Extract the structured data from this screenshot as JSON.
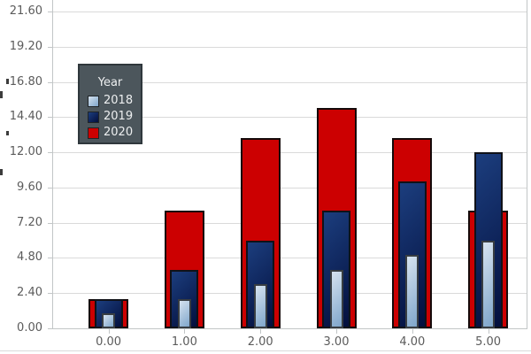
{
  "chart_data": {
    "type": "bar",
    "style": "overlapped bars: 2020 widest behind, 2019 middle, 2018 narrowest in front",
    "categories": [
      "0.00",
      "1.00",
      "2.00",
      "3.00",
      "4.00",
      "5.00"
    ],
    "series": [
      {
        "name": "2018",
        "values": [
          1,
          2,
          3,
          4,
          5,
          6
        ],
        "fill_top": "#D6E2EF",
        "fill_bottom": "#7FA6CB",
        "border": "#383d42"
      },
      {
        "name": "2019",
        "values": [
          2,
          4,
          6,
          8,
          10,
          12
        ],
        "fill_top": "#1C3E7E",
        "fill_bottom": "#030F3D",
        "border": "#101218"
      },
      {
        "name": "2020",
        "values": [
          2,
          8,
          13,
          15,
          13,
          8
        ],
        "fill_top": "#CC0001",
        "fill_bottom": "#CC0001",
        "border": "#140a0a"
      }
    ],
    "legend": {
      "title": "Year",
      "position": "upper-left",
      "entries": [
        "2018",
        "2019",
        "2020"
      ]
    },
    "y_axis": {
      "min": 0,
      "max": 21.6,
      "interval": 2.4,
      "tick_labels": [
        "0.00",
        "2.40",
        "4.80",
        "7.20",
        "9.60",
        "12.00",
        "14.40",
        "16.80",
        "19.20",
        "21.60"
      ]
    },
    "x_axis": {
      "tick_labels": [
        "0.00",
        "1.00",
        "2.00",
        "3.00",
        "4.00",
        "5.00"
      ]
    },
    "grid": "horizontal gridlines on, white plot background"
  },
  "colors": {
    "red_2020": "#CC0001",
    "navy_2019_top": "#1C3E7E",
    "navy_2019_bottom": "#030F3D",
    "blue_2018_top": "#D6E2EF",
    "blue_2018_bottom": "#7FA6CB",
    "legend_background": "#4C565C",
    "legend_border": "#2F373C",
    "legend_text": "#EDEFF0",
    "axis_text": "#5B5B5B",
    "gridline": "#DADADA",
    "axis_line": "#C2C6C7"
  }
}
